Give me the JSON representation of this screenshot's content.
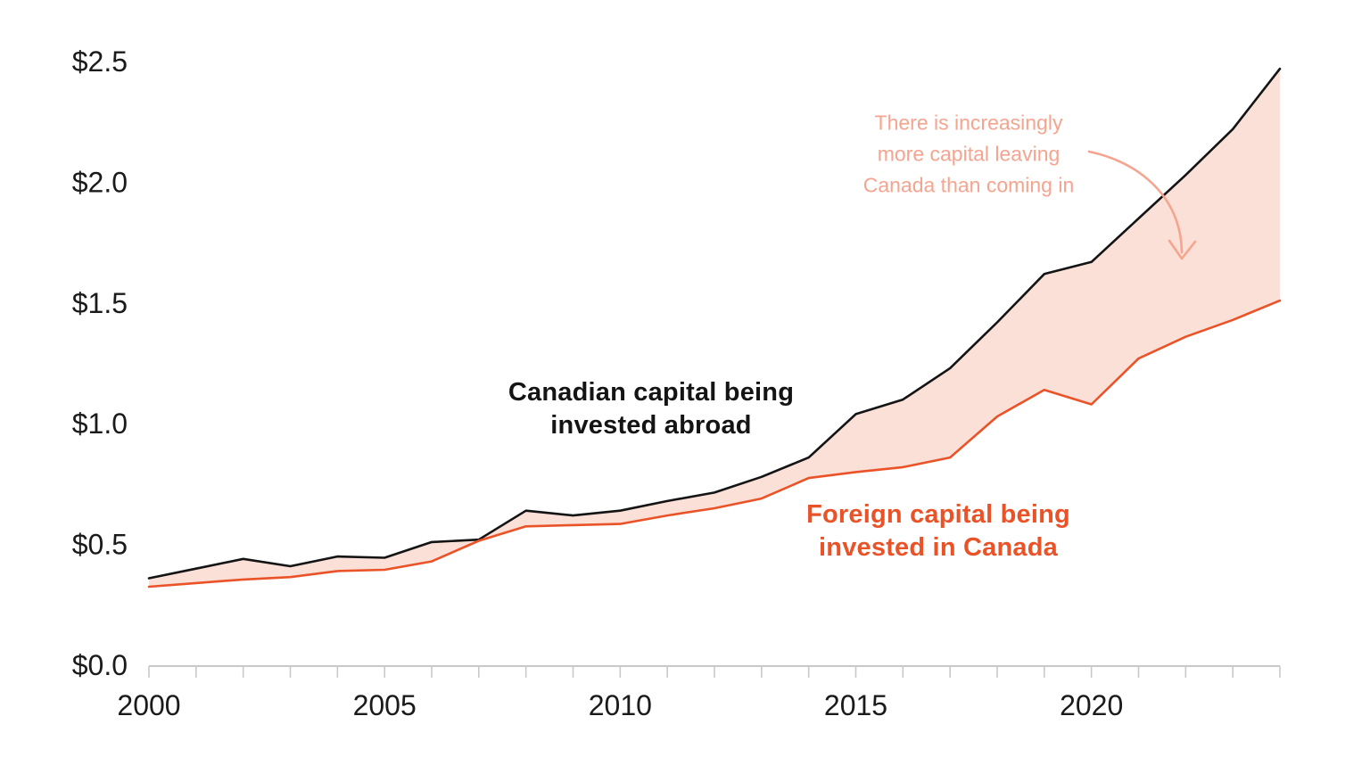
{
  "chart_data": {
    "type": "area",
    "title": "",
    "xlabel": "",
    "ylabel": "",
    "x": [
      2000,
      2001,
      2002,
      2003,
      2004,
      2005,
      2006,
      2007,
      2008,
      2009,
      2010,
      2011,
      2012,
      2013,
      2014,
      2015,
      2016,
      2017,
      2018,
      2019,
      2020,
      2021,
      2022,
      2023,
      2024
    ],
    "series": [
      {
        "name": "Canadian capital being invested abroad",
        "color": "#141414",
        "values": [
          0.36,
          0.4,
          0.44,
          0.41,
          0.45,
          0.445,
          0.51,
          0.52,
          0.64,
          0.62,
          0.64,
          0.68,
          0.715,
          0.78,
          0.86,
          1.04,
          1.1,
          1.23,
          1.42,
          1.62,
          1.67,
          1.85,
          2.03,
          2.22,
          2.47
        ]
      },
      {
        "name": "Foreign capital being invested in Canada",
        "color": "#ea5328",
        "values": [
          0.325,
          0.34,
          0.355,
          0.365,
          0.39,
          0.395,
          0.43,
          0.515,
          0.575,
          0.58,
          0.585,
          0.62,
          0.65,
          0.69,
          0.775,
          0.8,
          0.82,
          0.86,
          1.03,
          1.14,
          1.08,
          1.27,
          1.36,
          1.43,
          1.51
        ]
      }
    ],
    "fill_between": {
      "upper": 0,
      "lower": 1,
      "color": "rgba(234,83,40,0.18)"
    },
    "xlim": [
      2000,
      2024
    ],
    "ylim": [
      0,
      2.5
    ],
    "grid": false,
    "legend": "inline-labels",
    "y_ticks": [
      {
        "value": 2.5,
        "label": "$2.5"
      },
      {
        "value": 2.0,
        "label": "$2.0"
      },
      {
        "value": 1.5,
        "label": "$1.5"
      },
      {
        "value": 1.0,
        "label": "$1.0"
      },
      {
        "value": 0.5,
        "label": "$0.5"
      },
      {
        "value": 0.0,
        "label": "$0.0"
      }
    ],
    "x_tick_labels": [
      "2000",
      "2005",
      "2010",
      "2015",
      "2020"
    ],
    "x_minor_ticks": "every year 2000-2024",
    "axis_color": "#c9c9c9",
    "tick_label_color": "#1a1a1a"
  },
  "labels": {
    "abroad": [
      "Canadian capital being",
      "invested abroad"
    ],
    "foreign": [
      "Foreign capital being",
      "invested in Canada"
    ]
  },
  "annotation": {
    "lines": [
      "There is increasingly",
      "more capital leaving",
      "Canada than coming in"
    ],
    "color": "#f5a48f"
  }
}
